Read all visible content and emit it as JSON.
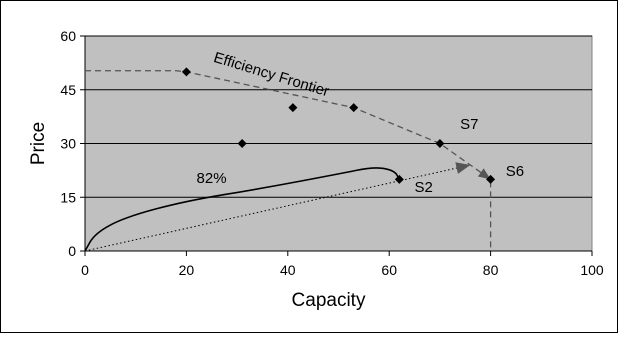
{
  "chart_data": {
    "type": "scatter",
    "xlabel": "Capacity",
    "ylabel": "Price",
    "xlim": [
      0,
      100
    ],
    "ylim": [
      0,
      60
    ],
    "xticks": [
      0,
      20,
      40,
      60,
      80,
      100
    ],
    "yticks": [
      0,
      15,
      30,
      45,
      60
    ],
    "grid": "horizontal",
    "plot_background": "#c0c0c0",
    "points": [
      {
        "x": 20,
        "y": 50
      },
      {
        "x": 31,
        "y": 30
      },
      {
        "x": 41,
        "y": 40
      },
      {
        "x": 53,
        "y": 40
      },
      {
        "x": 62,
        "y": 20
      },
      {
        "x": 70,
        "y": 30
      },
      {
        "x": 80,
        "y": 20
      }
    ],
    "frontier": {
      "label": "Efficiency Frontier",
      "style": "dashed",
      "path": [
        [
          0,
          50.3
        ],
        [
          18,
          50.3
        ],
        [
          20,
          50
        ],
        [
          53,
          40
        ],
        [
          70,
          30
        ],
        [
          80,
          20
        ],
        [
          80,
          0
        ]
      ]
    },
    "annotations": [
      {
        "text": "S7",
        "x": 74,
        "y": 34
      },
      {
        "text": "S6",
        "x": 83,
        "y": 21
      },
      {
        "text": "S2",
        "x": 65,
        "y": 16.5
      },
      {
        "text": "82%",
        "x": 22,
        "y": 19
      }
    ],
    "efficiency_arrow": {
      "from": [
        0,
        0
      ],
      "to": [
        76,
        24
      ],
      "style": "dotted"
    },
    "efficiency_curve": [
      [
        0,
        0
      ],
      [
        2,
        5
      ],
      [
        8,
        9.5
      ],
      [
        20,
        14
      ],
      [
        35,
        17.5
      ],
      [
        50,
        21.5
      ],
      [
        57,
        23.5
      ],
      [
        61,
        22.5
      ],
      [
        62,
        20
      ]
    ]
  }
}
